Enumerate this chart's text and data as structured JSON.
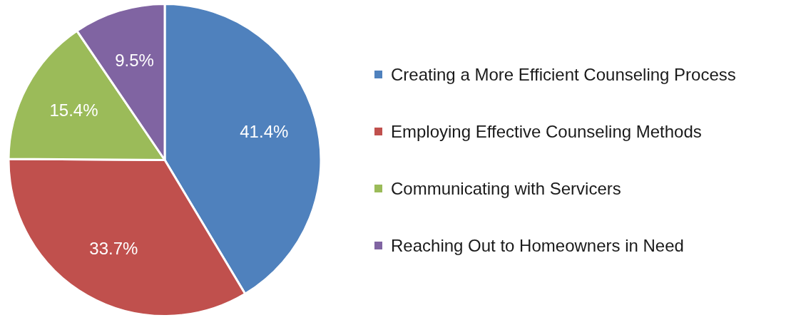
{
  "chart_data": {
    "type": "pie",
    "categories": [
      "Creating a More Efficient Counseling Process",
      "Employing Effective Counseling Methods",
      "Communicating with Servicers",
      "Reaching Out to Homeowners in Need"
    ],
    "values": [
      41.4,
      33.7,
      15.4,
      9.5
    ],
    "colors": [
      "#4f81bd",
      "#c0504d",
      "#9bbb59",
      "#8064a2"
    ],
    "value_labels": [
      "41.4%",
      "33.7%",
      "15.4%",
      "9.5%"
    ],
    "legend": "right"
  }
}
